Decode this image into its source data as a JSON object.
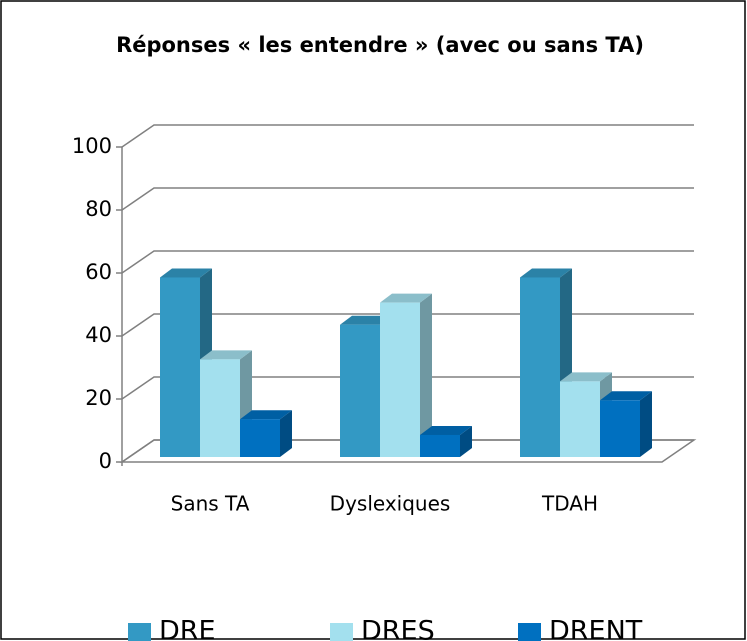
{
  "chart_data": {
    "type": "bar3d",
    "title": "Réponses « les entendre » (avec ou sans TA)",
    "categories": [
      "Sans TA",
      "Dyslexiques",
      "TDAH"
    ],
    "series": [
      {
        "name": "DRE",
        "color": "#3399c4",
        "values": [
          57,
          42,
          57
        ]
      },
      {
        "name": "DRES",
        "color": "#a3e0ee",
        "values": [
          31,
          49,
          24
        ]
      },
      {
        "name": "DRENT",
        "color": "#0070c0",
        "values": [
          12,
          7,
          18
        ]
      }
    ],
    "ylim": [
      0,
      100
    ],
    "yticks": [
      0,
      20,
      40,
      60,
      80,
      100
    ],
    "grid": true,
    "legend": "bottom"
  }
}
